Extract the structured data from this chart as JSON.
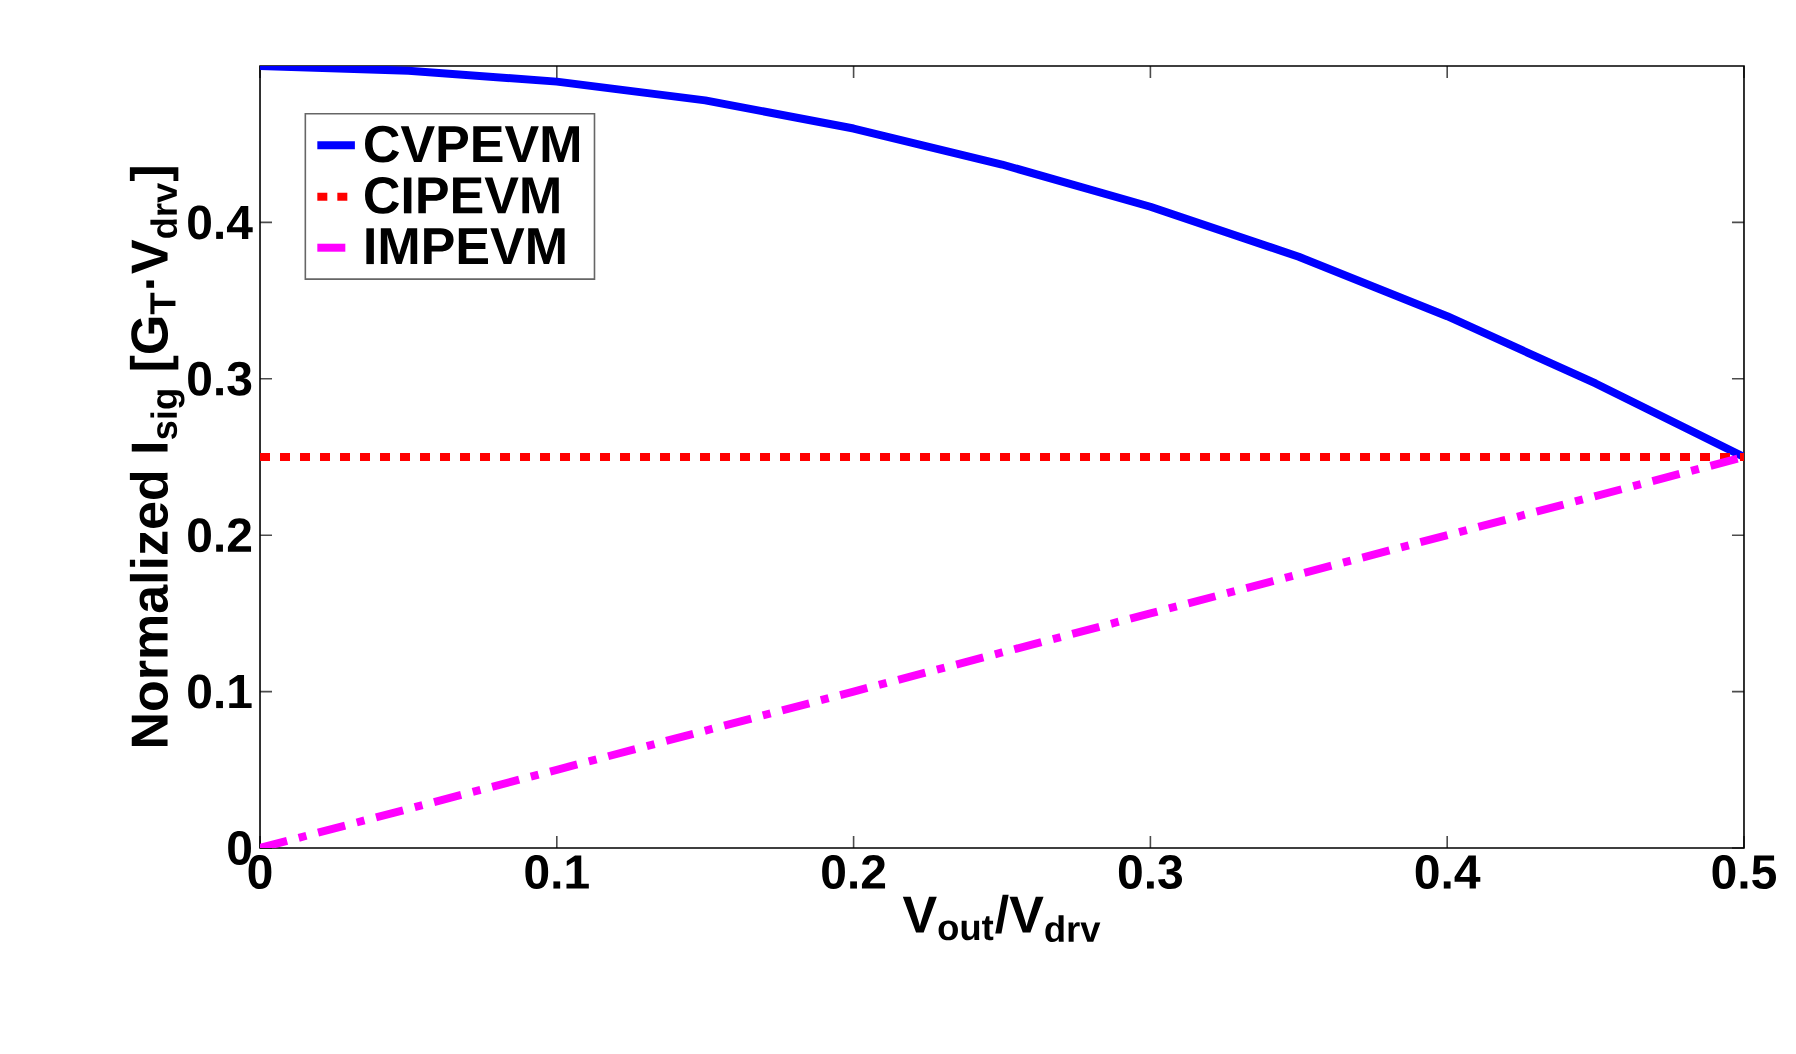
{
  "chart_data": {
    "type": "line",
    "xlabel": "V$_{out}$/V$_{drv}$",
    "ylabel": "Normalized I$_{sig}$ [G$_{T}$·V$_{drv}$]",
    "xlim": [
      0,
      0.5
    ],
    "ylim": [
      0,
      0.5
    ],
    "xticks": [
      0,
      0.1,
      0.2,
      0.3,
      0.4,
      0.5
    ],
    "yticks": [
      0,
      0.1,
      0.2,
      0.3,
      0.4
    ],
    "x": [
      0,
      0.05,
      0.1,
      0.15,
      0.2,
      0.25,
      0.3,
      0.35,
      0.4,
      0.45,
      0.5
    ],
    "grid": false,
    "legend": "top left",
    "marker": "none",
    "series": [
      {
        "name": "CVPEVM",
        "color": "#0000ff",
        "line_style": "solid",
        "values": [
          0.5,
          0.497,
          0.49,
          0.478,
          0.46,
          0.437,
          0.41,
          0.378,
          0.34,
          0.297,
          0.25
        ]
      },
      {
        "name": "CIPEVM",
        "color": "#ff0000",
        "line_style": "dotted",
        "values": [
          0.25,
          0.25,
          0.25,
          0.25,
          0.25,
          0.25,
          0.25,
          0.25,
          0.25,
          0.25,
          0.25
        ]
      },
      {
        "name": "IMPEVM",
        "color": "#ff00ff",
        "line_style": "dashdot",
        "values": [
          0,
          0.025,
          0.05,
          0.075,
          0.1,
          0.125,
          0.15,
          0.175,
          0.2,
          0.225,
          0.25
        ]
      }
    ]
  }
}
